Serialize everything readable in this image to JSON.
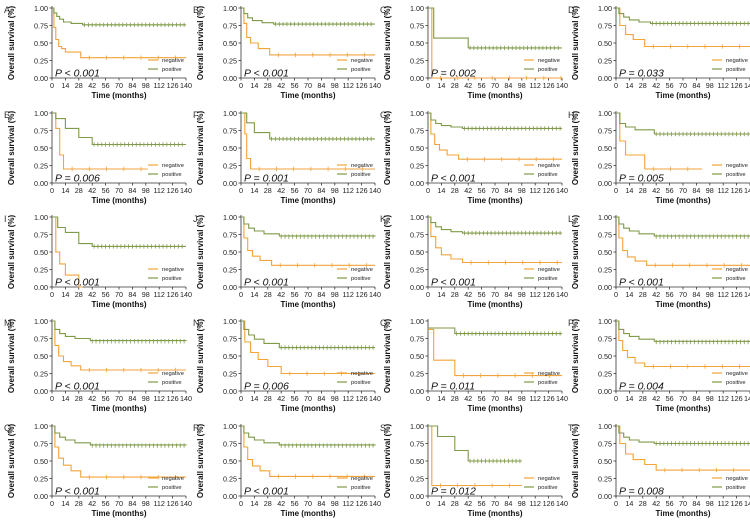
{
  "axis_text": {
    "ylabel": "Overall survival (%)",
    "xlabel": "Time (months)",
    "yticks": [
      "0.00",
      "0.25",
      "0.50",
      "0.75",
      "1.00"
    ],
    "xticks": [
      "0",
      "14",
      "28",
      "42",
      "56",
      "70",
      "84",
      "98",
      "112",
      "126",
      "140"
    ]
  },
  "legend_labels": [
    "negative",
    "positive"
  ],
  "colors": {
    "negative": "#f2a33a",
    "positive": "#7f9a48",
    "axis": "#333333"
  },
  "chart_data": [
    {
      "panel": "A",
      "type": "line",
      "pvalue": "P < 0.001",
      "xlim": [
        0,
        140
      ],
      "ylim": [
        0,
        1
      ],
      "series": [
        {
          "name": "negative",
          "x": [
            0,
            2,
            4,
            7,
            10,
            14,
            30,
            140
          ],
          "y": [
            1.0,
            0.72,
            0.55,
            0.45,
            0.42,
            0.37,
            0.29,
            0.29
          ]
        },
        {
          "name": "positive",
          "x": [
            0,
            2,
            5,
            8,
            12,
            20,
            32,
            140
          ],
          "y": [
            1.0,
            0.93,
            0.88,
            0.84,
            0.8,
            0.78,
            0.76,
            0.76
          ]
        }
      ]
    },
    {
      "panel": "B",
      "type": "line",
      "pvalue": "P < 0.001",
      "xlim": [
        0,
        140
      ],
      "ylim": [
        0,
        1
      ],
      "series": [
        {
          "name": "negative",
          "x": [
            0,
            3,
            6,
            10,
            18,
            30,
            140
          ],
          "y": [
            1.0,
            0.78,
            0.58,
            0.5,
            0.42,
            0.33,
            0.33
          ]
        },
        {
          "name": "positive",
          "x": [
            0,
            3,
            7,
            12,
            22,
            34,
            140
          ],
          "y": [
            1.0,
            0.92,
            0.86,
            0.82,
            0.79,
            0.77,
            0.77
          ]
        }
      ]
    },
    {
      "panel": "C",
      "type": "line",
      "pvalue": "P = 0.002",
      "xlim": [
        0,
        140
      ],
      "ylim": [
        0,
        1
      ],
      "series": [
        {
          "name": "negative",
          "x": [
            0,
            4,
            140
          ],
          "y": [
            1.0,
            0.0,
            0.0
          ]
        },
        {
          "name": "positive",
          "x": [
            0,
            6,
            42,
            140
          ],
          "y": [
            1.0,
            0.57,
            0.43,
            0.43
          ]
        }
      ]
    },
    {
      "panel": "D",
      "type": "line",
      "pvalue": "P = 0.033",
      "xlim": [
        0,
        140
      ],
      "ylim": [
        0,
        1
      ],
      "series": [
        {
          "name": "negative",
          "x": [
            0,
            4,
            10,
            18,
            30,
            140
          ],
          "y": [
            1.0,
            0.75,
            0.62,
            0.55,
            0.45,
            0.45
          ]
        },
        {
          "name": "positive",
          "x": [
            0,
            3,
            8,
            14,
            24,
            36,
            140
          ],
          "y": [
            1.0,
            0.92,
            0.87,
            0.83,
            0.8,
            0.78,
            0.78
          ]
        }
      ]
    },
    {
      "panel": "E",
      "type": "line",
      "pvalue": "P = 0.006",
      "xlim": [
        0,
        140
      ],
      "ylim": [
        0,
        1
      ],
      "series": [
        {
          "name": "negative",
          "x": [
            0,
            4,
            8,
            12,
            100
          ],
          "y": [
            1.0,
            0.78,
            0.4,
            0.2,
            0.2
          ]
        },
        {
          "name": "positive",
          "x": [
            0,
            4,
            14,
            28,
            42,
            140
          ],
          "y": [
            1.0,
            0.92,
            0.78,
            0.65,
            0.55,
            0.55
          ]
        }
      ]
    },
    {
      "panel": "F",
      "type": "line",
      "pvalue": "P = 0.001",
      "xlim": [
        0,
        140
      ],
      "ylim": [
        0,
        1
      ],
      "series": [
        {
          "name": "negative",
          "x": [
            0,
            4,
            6,
            10,
            140
          ],
          "y": [
            1.0,
            0.7,
            0.35,
            0.2,
            0.2
          ]
        },
        {
          "name": "positive",
          "x": [
            0,
            6,
            14,
            30,
            140
          ],
          "y": [
            1.0,
            0.86,
            0.72,
            0.63,
            0.63
          ]
        }
      ]
    },
    {
      "panel": "G",
      "type": "line",
      "pvalue": "P < 0.001",
      "xlim": [
        0,
        140
      ],
      "ylim": [
        0,
        1
      ],
      "series": [
        {
          "name": "negative",
          "x": [
            0,
            3,
            7,
            12,
            20,
            32,
            140
          ],
          "y": [
            1.0,
            0.7,
            0.55,
            0.47,
            0.4,
            0.34,
            0.34
          ]
        },
        {
          "name": "positive",
          "x": [
            0,
            3,
            8,
            14,
            24,
            36,
            140
          ],
          "y": [
            1.0,
            0.9,
            0.85,
            0.82,
            0.8,
            0.78,
            0.78
          ]
        }
      ]
    },
    {
      "panel": "H",
      "type": "line",
      "pvalue": "P = 0.005",
      "xlim": [
        0,
        140
      ],
      "ylim": [
        0,
        1
      ],
      "series": [
        {
          "name": "negative",
          "x": [
            0,
            4,
            10,
            30,
            90
          ],
          "y": [
            1.0,
            0.6,
            0.4,
            0.2,
            0.2
          ]
        },
        {
          "name": "positive",
          "x": [
            0,
            4,
            10,
            20,
            40,
            140
          ],
          "y": [
            1.0,
            0.85,
            0.8,
            0.76,
            0.7,
            0.7
          ]
        }
      ]
    },
    {
      "panel": "I",
      "type": "line",
      "pvalue": "P < 0.001",
      "xlim": [
        0,
        140
      ],
      "ylim": [
        0,
        1
      ],
      "series": [
        {
          "name": "negative",
          "x": [
            0,
            4,
            8,
            14,
            28,
            32
          ],
          "y": [
            1.0,
            0.5,
            0.33,
            0.17,
            0.0,
            0.0
          ]
        },
        {
          "name": "positive",
          "x": [
            0,
            6,
            14,
            28,
            42,
            140
          ],
          "y": [
            1.0,
            0.85,
            0.78,
            0.62,
            0.58,
            0.58
          ]
        }
      ]
    },
    {
      "panel": "J",
      "type": "line",
      "pvalue": "P < 0.001",
      "xlim": [
        0,
        140
      ],
      "ylim": [
        0,
        1
      ],
      "series": [
        {
          "name": "negative",
          "x": [
            0,
            3,
            7,
            12,
            20,
            32,
            140
          ],
          "y": [
            1.0,
            0.7,
            0.52,
            0.44,
            0.38,
            0.31,
            0.31
          ]
        },
        {
          "name": "positive",
          "x": [
            0,
            3,
            8,
            14,
            24,
            40,
            140
          ],
          "y": [
            1.0,
            0.9,
            0.84,
            0.8,
            0.76,
            0.73,
            0.72
          ]
        }
      ]
    },
    {
      "panel": "K",
      "type": "line",
      "pvalue": "P < 0.001",
      "xlim": [
        0,
        140
      ],
      "ylim": [
        0,
        1
      ],
      "series": [
        {
          "name": "negative",
          "x": [
            0,
            3,
            8,
            14,
            24,
            36,
            140
          ],
          "y": [
            1.0,
            0.72,
            0.56,
            0.46,
            0.4,
            0.35,
            0.35
          ]
        },
        {
          "name": "positive",
          "x": [
            0,
            3,
            8,
            14,
            24,
            36,
            140
          ],
          "y": [
            1.0,
            0.92,
            0.86,
            0.82,
            0.79,
            0.77,
            0.77
          ]
        }
      ]
    },
    {
      "panel": "L",
      "type": "line",
      "pvalue": "P < 0.001",
      "xlim": [
        0,
        140
      ],
      "ylim": [
        0,
        1
      ],
      "series": [
        {
          "name": "negative",
          "x": [
            0,
            3,
            7,
            12,
            20,
            32,
            140
          ],
          "y": [
            1.0,
            0.7,
            0.52,
            0.43,
            0.37,
            0.31,
            0.31
          ]
        },
        {
          "name": "positive",
          "x": [
            0,
            3,
            8,
            14,
            24,
            40,
            140
          ],
          "y": [
            1.0,
            0.9,
            0.84,
            0.8,
            0.76,
            0.73,
            0.72
          ]
        }
      ]
    },
    {
      "panel": "M",
      "type": "line",
      "pvalue": "P < 0.001",
      "xlim": [
        0,
        140
      ],
      "ylim": [
        0,
        1
      ],
      "series": [
        {
          "name": "negative",
          "x": [
            0,
            3,
            7,
            12,
            20,
            30,
            140
          ],
          "y": [
            1.0,
            0.65,
            0.5,
            0.42,
            0.36,
            0.3,
            0.3
          ]
        },
        {
          "name": "positive",
          "x": [
            0,
            3,
            8,
            14,
            24,
            40,
            140
          ],
          "y": [
            1.0,
            0.88,
            0.82,
            0.78,
            0.75,
            0.72,
            0.71
          ]
        }
      ]
    },
    {
      "panel": "N",
      "type": "line",
      "pvalue": "P = 0.006",
      "xlim": [
        0,
        140
      ],
      "ylim": [
        0,
        1
      ],
      "series": [
        {
          "name": "negative",
          "x": [
            0,
            4,
            10,
            18,
            28,
            42,
            140
          ],
          "y": [
            1.0,
            0.7,
            0.55,
            0.45,
            0.35,
            0.25,
            0.25
          ]
        },
        {
          "name": "positive",
          "x": [
            0,
            3,
            8,
            14,
            24,
            40,
            140
          ],
          "y": [
            1.0,
            0.88,
            0.8,
            0.74,
            0.68,
            0.62,
            0.62
          ]
        }
      ]
    },
    {
      "panel": "O",
      "type": "line",
      "pvalue": "P = 0.011",
      "xlim": [
        0,
        140
      ],
      "ylim": [
        0,
        1
      ],
      "series": [
        {
          "name": "negative",
          "x": [
            0,
            6,
            28,
            140
          ],
          "y": [
            0.88,
            0.44,
            0.22,
            0.22
          ]
        },
        {
          "name": "positive",
          "x": [
            0,
            6,
            28,
            140
          ],
          "y": [
            0.9,
            0.9,
            0.82,
            0.82
          ]
        }
      ]
    },
    {
      "panel": "P",
      "type": "line",
      "pvalue": "P = 0.004",
      "xlim": [
        0,
        140
      ],
      "ylim": [
        0,
        1
      ],
      "series": [
        {
          "name": "negative",
          "x": [
            0,
            3,
            7,
            12,
            20,
            30,
            140
          ],
          "y": [
            1.0,
            0.72,
            0.58,
            0.48,
            0.4,
            0.35,
            0.35
          ]
        },
        {
          "name": "positive",
          "x": [
            0,
            3,
            8,
            14,
            24,
            40,
            140
          ],
          "y": [
            1.0,
            0.88,
            0.82,
            0.78,
            0.74,
            0.71,
            0.7
          ]
        }
      ]
    },
    {
      "panel": "Q",
      "type": "line",
      "pvalue": "P < 0.001",
      "xlim": [
        0,
        140
      ],
      "ylim": [
        0,
        1
      ],
      "series": [
        {
          "name": "negative",
          "x": [
            0,
            3,
            7,
            12,
            20,
            30,
            140
          ],
          "y": [
            1.0,
            0.7,
            0.54,
            0.44,
            0.36,
            0.27,
            0.27
          ]
        },
        {
          "name": "positive",
          "x": [
            0,
            3,
            8,
            14,
            24,
            40,
            140
          ],
          "y": [
            1.0,
            0.9,
            0.84,
            0.8,
            0.76,
            0.73,
            0.72
          ]
        }
      ]
    },
    {
      "panel": "R",
      "type": "line",
      "pvalue": "P < 0.001",
      "xlim": [
        0,
        140
      ],
      "ylim": [
        0,
        1
      ],
      "series": [
        {
          "name": "negative",
          "x": [
            0,
            3,
            7,
            12,
            20,
            30,
            140
          ],
          "y": [
            1.0,
            0.7,
            0.52,
            0.43,
            0.36,
            0.28,
            0.28
          ]
        },
        {
          "name": "positive",
          "x": [
            0,
            3,
            8,
            14,
            24,
            40,
            140
          ],
          "y": [
            1.0,
            0.9,
            0.84,
            0.8,
            0.76,
            0.73,
            0.72
          ]
        }
      ]
    },
    {
      "panel": "S",
      "type": "line",
      "pvalue": "P = 0.012",
      "xlim": [
        0,
        140
      ],
      "ylim": [
        0,
        1
      ],
      "series": [
        {
          "name": "negative",
          "x": [
            0,
            4,
            98
          ],
          "y": [
            1.0,
            0.15,
            0.15
          ]
        },
        {
          "name": "positive",
          "x": [
            0,
            10,
            28,
            42,
            98
          ],
          "y": [
            1.0,
            0.85,
            0.65,
            0.5,
            0.5
          ]
        }
      ]
    },
    {
      "panel": "T",
      "type": "line",
      "pvalue": "P = 0.008",
      "xlim": [
        0,
        140
      ],
      "ylim": [
        0,
        1
      ],
      "series": [
        {
          "name": "negative",
          "x": [
            0,
            4,
            10,
            18,
            30,
            42,
            140
          ],
          "y": [
            1.0,
            0.75,
            0.6,
            0.52,
            0.45,
            0.37,
            0.37
          ]
        },
        {
          "name": "positive",
          "x": [
            0,
            3,
            8,
            14,
            24,
            40,
            140
          ],
          "y": [
            1.0,
            0.9,
            0.84,
            0.8,
            0.77,
            0.75,
            0.75
          ]
        }
      ]
    }
  ]
}
